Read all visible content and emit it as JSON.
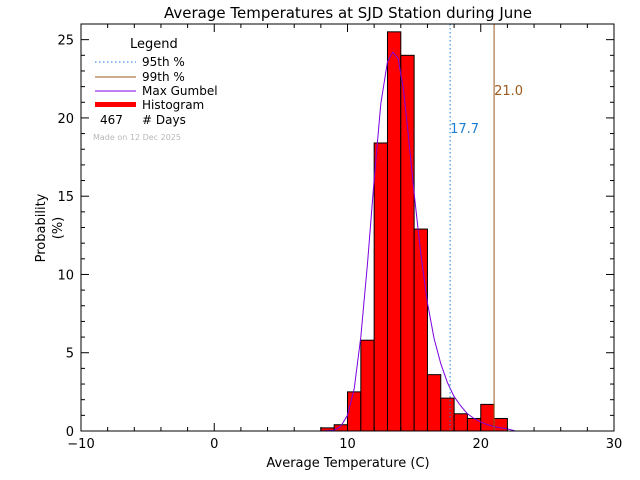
{
  "chart_data": {
    "type": "bar",
    "title": "Average Temperatures at SJD Station during June",
    "xlabel": "Average Temperature (C)",
    "ylabel": "Probability",
    "ylabel_unit": "(%)",
    "xlim": [
      -10,
      30
    ],
    "ylim": [
      0,
      26
    ],
    "x_ticks": [
      -10,
      0,
      10,
      20,
      30
    ],
    "y_ticks": [
      0,
      5,
      10,
      15,
      20,
      25
    ],
    "legend": {
      "title": "Legend",
      "placement": "top-left",
      "entries": [
        {
          "label": "95th %",
          "style": "dotted",
          "color": "#1a7fd4"
        },
        {
          "label": "99th %",
          "style": "solid",
          "color": "#9c5a1e"
        },
        {
          "label": "Max Gumbel",
          "style": "solid",
          "color": "#7a00e0"
        },
        {
          "label": "Histogram",
          "style": "thick",
          "color": "#ff0000"
        }
      ],
      "days_count": "467",
      "days_label": "# Days"
    },
    "watermark": "Made on 12 Dec 2025",
    "histogram": {
      "bin_width": 1.0,
      "bins": [
        {
          "x0": 8,
          "value": 0.2
        },
        {
          "x0": 9,
          "value": 0.4
        },
        {
          "x0": 10,
          "value": 2.5
        },
        {
          "x0": 11,
          "value": 5.8
        },
        {
          "x0": 12,
          "value": 18.4
        },
        {
          "x0": 13,
          "value": 25.5
        },
        {
          "x0": 14,
          "value": 24.0
        },
        {
          "x0": 15,
          "value": 12.9
        },
        {
          "x0": 16,
          "value": 3.6
        },
        {
          "x0": 17,
          "value": 2.1
        },
        {
          "x0": 18,
          "value": 1.1
        },
        {
          "x0": 19,
          "value": 0.8
        },
        {
          "x0": 20,
          "value": 1.7
        },
        {
          "x0": 21,
          "value": 0.8
        }
      ]
    },
    "gumbel_curve": {
      "name": "Max Gumbel",
      "x": [
        8.0,
        9.0,
        9.5,
        10.0,
        10.5,
        11.0,
        11.5,
        12.0,
        12.5,
        13.0,
        13.4,
        13.8,
        14.2,
        14.6,
        15.0,
        15.5,
        16.0,
        16.5,
        17.0,
        17.5,
        18.0,
        18.5,
        19.0,
        19.5,
        20.0,
        20.5,
        21.0,
        21.5,
        22.0,
        22.6
      ],
      "y": [
        0.0,
        0.05,
        0.3,
        1.0,
        2.7,
        6.0,
        10.7,
        16.1,
        20.9,
        23.6,
        24.2,
        23.8,
        21.8,
        18.6,
        15.2,
        11.3,
        8.2,
        5.9,
        4.3,
        3.1,
        2.2,
        1.6,
        1.1,
        0.8,
        0.57,
        0.4,
        0.28,
        0.2,
        0.14,
        0.0
      ]
    },
    "percentiles": [
      {
        "name": "95th %",
        "x": 17.7,
        "label": "17.7",
        "color": "#1a7fd4",
        "style": "dotted"
      },
      {
        "name": "99th %",
        "x": 21.0,
        "label": "21.0",
        "color": "#9c5a1e",
        "style": "solid"
      }
    ],
    "grid": false
  }
}
